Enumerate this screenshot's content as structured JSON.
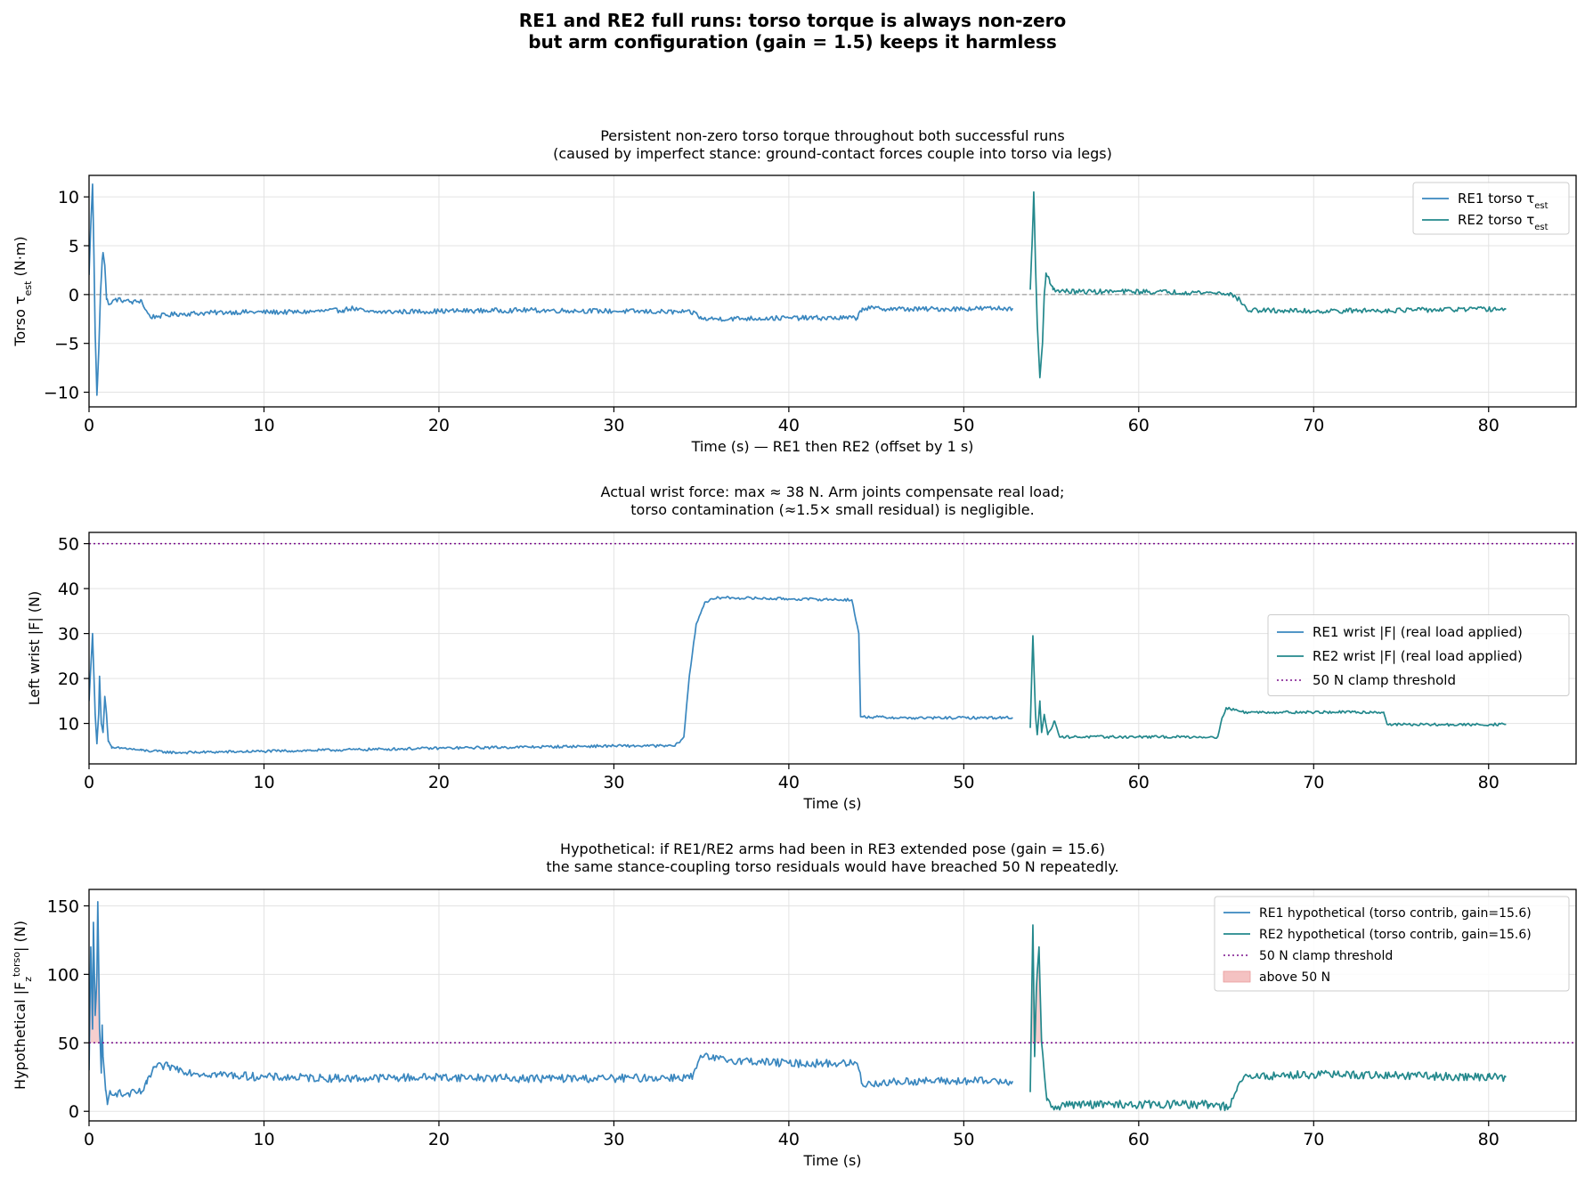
{
  "chart_data": {
    "suptitle_lines": [
      "RE1 and RE2 full runs: torso torque is always non-zero",
      "but arm configuration (gain = 1.5) keeps it harmless"
    ],
    "colors": {
      "re1": "#3a87bf",
      "re2": "#23888c",
      "threshold": "#7a0f8c",
      "fill_above": "#f4c2c2",
      "zero_line": "#888888"
    },
    "panels": [
      {
        "type": "line",
        "title_lines": [
          "Persistent non-zero torso torque throughout both successful runs",
          "(caused by imperfect stance: ground-contact forces couple into torso via legs)"
        ],
        "xlabel": "Time (s) — RE1 then RE2 (offset by 1 s)",
        "ylabel": "Torso τ",
        "ylabel_sub": "est",
        "ylabel_tail": " (N·m)",
        "xlim": [
          0,
          85
        ],
        "ylim": [
          -11.5,
          12.2
        ],
        "xticks": [
          0,
          10,
          20,
          30,
          40,
          50,
          60,
          70,
          80
        ],
        "yticks": [
          -10,
          -5,
          0,
          5,
          10
        ],
        "ytick_labels": [
          "−10",
          "−5",
          "0",
          "5",
          "10"
        ],
        "zero_line": true,
        "legend_position": "top-right",
        "series": [
          {
            "name": "RE1 torso τ",
            "name_sub": "est",
            "color_key": "re1",
            "noise": 0.25,
            "points": [
              [
                0,
                2
              ],
              [
                0.12,
                8
              ],
              [
                0.2,
                11.3
              ],
              [
                0.28,
                4
              ],
              [
                0.35,
                -4
              ],
              [
                0.45,
                -10.3
              ],
              [
                0.55,
                -6
              ],
              [
                0.65,
                0
              ],
              [
                0.75,
                3.5
              ],
              [
                0.8,
                4.3
              ],
              [
                0.9,
                3
              ],
              [
                1.0,
                -0.5
              ],
              [
                1.2,
                -1.0
              ],
              [
                1.5,
                -0.5
              ],
              [
                2.0,
                -0.6
              ],
              [
                2.5,
                -0.8
              ],
              [
                3.0,
                -0.6
              ],
              [
                3.2,
                -1.5
              ],
              [
                3.5,
                -2.3
              ],
              [
                4.0,
                -2.2
              ],
              [
                5,
                -2.0
              ],
              [
                8,
                -1.8
              ],
              [
                12,
                -1.8
              ],
              [
                14.5,
                -1.6
              ],
              [
                15,
                -1.4
              ],
              [
                16,
                -1.8
              ],
              [
                20,
                -1.7
              ],
              [
                25,
                -1.6
              ],
              [
                30,
                -1.7
              ],
              [
                34,
                -1.8
              ],
              [
                34.7,
                -1.9
              ],
              [
                35,
                -2.5
              ],
              [
                40,
                -2.4
              ],
              [
                43.9,
                -2.4
              ],
              [
                44.2,
                -1.4
              ],
              [
                47,
                -1.5
              ],
              [
                52.8,
                -1.4
              ]
            ]
          },
          {
            "name": "RE2 torso τ",
            "name_sub": "est",
            "color_key": "re2",
            "noise": 0.25,
            "points": [
              [
                53.8,
                0.5
              ],
              [
                53.9,
                5
              ],
              [
                54.0,
                10.5
              ],
              [
                54.1,
                3
              ],
              [
                54.2,
                -3
              ],
              [
                54.35,
                -8.5
              ],
              [
                54.5,
                -5
              ],
              [
                54.6,
                0
              ],
              [
                54.7,
                2.2
              ],
              [
                54.9,
                1.5
              ],
              [
                55.1,
                0.5
              ],
              [
                56,
                0.3
              ],
              [
                60,
                0.3
              ],
              [
                64,
                0.2
              ],
              [
                65.2,
                0.1
              ],
              [
                65.8,
                -0.6
              ],
              [
                66.2,
                -1.6
              ],
              [
                70,
                -1.7
              ],
              [
                75,
                -1.6
              ],
              [
                80,
                -1.5
              ],
              [
                81,
                -1.5
              ]
            ]
          }
        ],
        "thresholds": []
      },
      {
        "type": "line",
        "title_lines": [
          "Actual wrist force: max ≈ 38 N.  Arm joints compensate real load;",
          "torso contamination (≈1.5× small residual) is negligible."
        ],
        "xlabel": "Time (s)",
        "ylabel": "Left wrist |F| (N)",
        "xlim": [
          0,
          85
        ],
        "ylim": [
          1,
          52.5
        ],
        "xticks": [
          0,
          10,
          20,
          30,
          40,
          50,
          60,
          70,
          80
        ],
        "yticks": [
          10,
          20,
          30,
          40,
          50
        ],
        "ytick_labels": [
          "10",
          "20",
          "30",
          "40",
          "50"
        ],
        "zero_line": false,
        "legend_position": "center-right",
        "series": [
          {
            "name": "RE1 wrist |F| (real load applied)",
            "color_key": "re1",
            "noise": 0.3,
            "points": [
              [
                0,
                15
              ],
              [
                0.2,
                30
              ],
              [
                0.35,
                12
              ],
              [
                0.45,
                5.5
              ],
              [
                0.55,
                12
              ],
              [
                0.6,
                20.5
              ],
              [
                0.7,
                10
              ],
              [
                0.8,
                8
              ],
              [
                0.9,
                16
              ],
              [
                1.0,
                12
              ],
              [
                1.1,
                6
              ],
              [
                1.3,
                4.5
              ],
              [
                2,
                4.5
              ],
              [
                3,
                4.0
              ],
              [
                5,
                3.5
              ],
              [
                10,
                3.8
              ],
              [
                20,
                4.5
              ],
              [
                30,
                5.0
              ],
              [
                33.5,
                5.0
              ],
              [
                34,
                7
              ],
              [
                34.3,
                20
              ],
              [
                34.7,
                32
              ],
              [
                35.2,
                37
              ],
              [
                36,
                38
              ],
              [
                40,
                37.7
              ],
              [
                43.6,
                37.5
              ],
              [
                44,
                30
              ],
              [
                44.1,
                11.5
              ],
              [
                47,
                11.2
              ],
              [
                52.8,
                11.3
              ]
            ]
          },
          {
            "name": "RE2 wrist |F| (real load applied)",
            "color_key": "re2",
            "noise": 0.3,
            "points": [
              [
                53.8,
                9
              ],
              [
                53.95,
                29.5
              ],
              [
                54.1,
                12
              ],
              [
                54.2,
                7.5
              ],
              [
                54.35,
                15
              ],
              [
                54.45,
                8
              ],
              [
                54.6,
                12
              ],
              [
                54.8,
                7.5
              ],
              [
                55.2,
                10.5
              ],
              [
                55.5,
                7
              ],
              [
                60,
                7
              ],
              [
                64.5,
                7
              ],
              [
                64.8,
                11.5
              ],
              [
                65,
                13.5
              ],
              [
                66,
                12.5
              ],
              [
                74,
                12.5
              ],
              [
                74.2,
                9.8
              ],
              [
                78,
                9.7
              ],
              [
                81,
                9.8
              ]
            ]
          }
        ],
        "thresholds": [
          {
            "name": "50 N clamp threshold",
            "value": 50,
            "color_key": "threshold"
          }
        ]
      },
      {
        "type": "line",
        "title_lines": [
          "Hypothetical: if RE1/RE2 arms had been in RE3 extended pose (gain  =  15.6)",
          "the same stance-coupling torso residuals would have breached 50 N repeatedly."
        ],
        "xlabel": "Time (s)",
        "ylabel": "Hypothetical |F",
        "ylabel_sub": "z",
        "ylabel_sup": "torso",
        "ylabel_tail": "| (N)",
        "xlim": [
          0,
          85
        ],
        "ylim": [
          -7,
          162
        ],
        "xticks": [
          0,
          10,
          20,
          30,
          40,
          50,
          60,
          70,
          80
        ],
        "yticks": [
          0,
          50,
          100,
          150
        ],
        "ytick_labels": [
          "0",
          "50",
          "100",
          "150"
        ],
        "zero_line": false,
        "legend_position": "top-right",
        "series": [
          {
            "name": "RE1 hypothetical (torso contrib, gain=15.6)",
            "color_key": "re1",
            "noise": 3.0,
            "points": [
              [
                0,
                30
              ],
              [
                0.1,
                120
              ],
              [
                0.2,
                60
              ],
              [
                0.25,
                138
              ],
              [
                0.35,
                70
              ],
              [
                0.45,
                100
              ],
              [
                0.5,
                153
              ],
              [
                0.6,
                60
              ],
              [
                0.7,
                28
              ],
              [
                0.75,
                63
              ],
              [
                0.8,
                40
              ],
              [
                0.95,
                15
              ],
              [
                1.05,
                5
              ],
              [
                1.2,
                15
              ],
              [
                2,
                12
              ],
              [
                3,
                14
              ],
              [
                3.3,
                20
              ],
              [
                3.7,
                32
              ],
              [
                4.5,
                33
              ],
              [
                6,
                28
              ],
              [
                10,
                25
              ],
              [
                15,
                24
              ],
              [
                20,
                25
              ],
              [
                25,
                24
              ],
              [
                30,
                24
              ],
              [
                34.5,
                25
              ],
              [
                35,
                40
              ],
              [
                36,
                38
              ],
              [
                40,
                35
              ],
              [
                43.9,
                35
              ],
              [
                44.2,
                20
              ],
              [
                47,
                22
              ],
              [
                52.8,
                22
              ]
            ]
          },
          {
            "name": "RE2 hypothetical (torso contrib, gain=15.6)",
            "color_key": "re2",
            "noise": 3.0,
            "points": [
              [
                53.8,
                14
              ],
              [
                53.95,
                136
              ],
              [
                54.05,
                40
              ],
              [
                54.15,
                90
              ],
              [
                54.3,
                120
              ],
              [
                54.45,
                50
              ],
              [
                54.6,
                28
              ],
              [
                54.75,
                8
              ],
              [
                55,
                3
              ],
              [
                56,
                5
              ],
              [
                60,
                5
              ],
              [
                64,
                5
              ],
              [
                65.2,
                3
              ],
              [
                65.6,
                15
              ],
              [
                66,
                25
              ],
              [
                70,
                27
              ],
              [
                75,
                26
              ],
              [
                80,
                25
              ],
              [
                81,
                25
              ]
            ]
          }
        ],
        "thresholds": [
          {
            "name": "50 N clamp threshold",
            "value": 50,
            "color_key": "threshold"
          }
        ],
        "fill_above": {
          "name": "above 50 N",
          "value": 50,
          "color_key": "fill_above"
        }
      }
    ]
  }
}
